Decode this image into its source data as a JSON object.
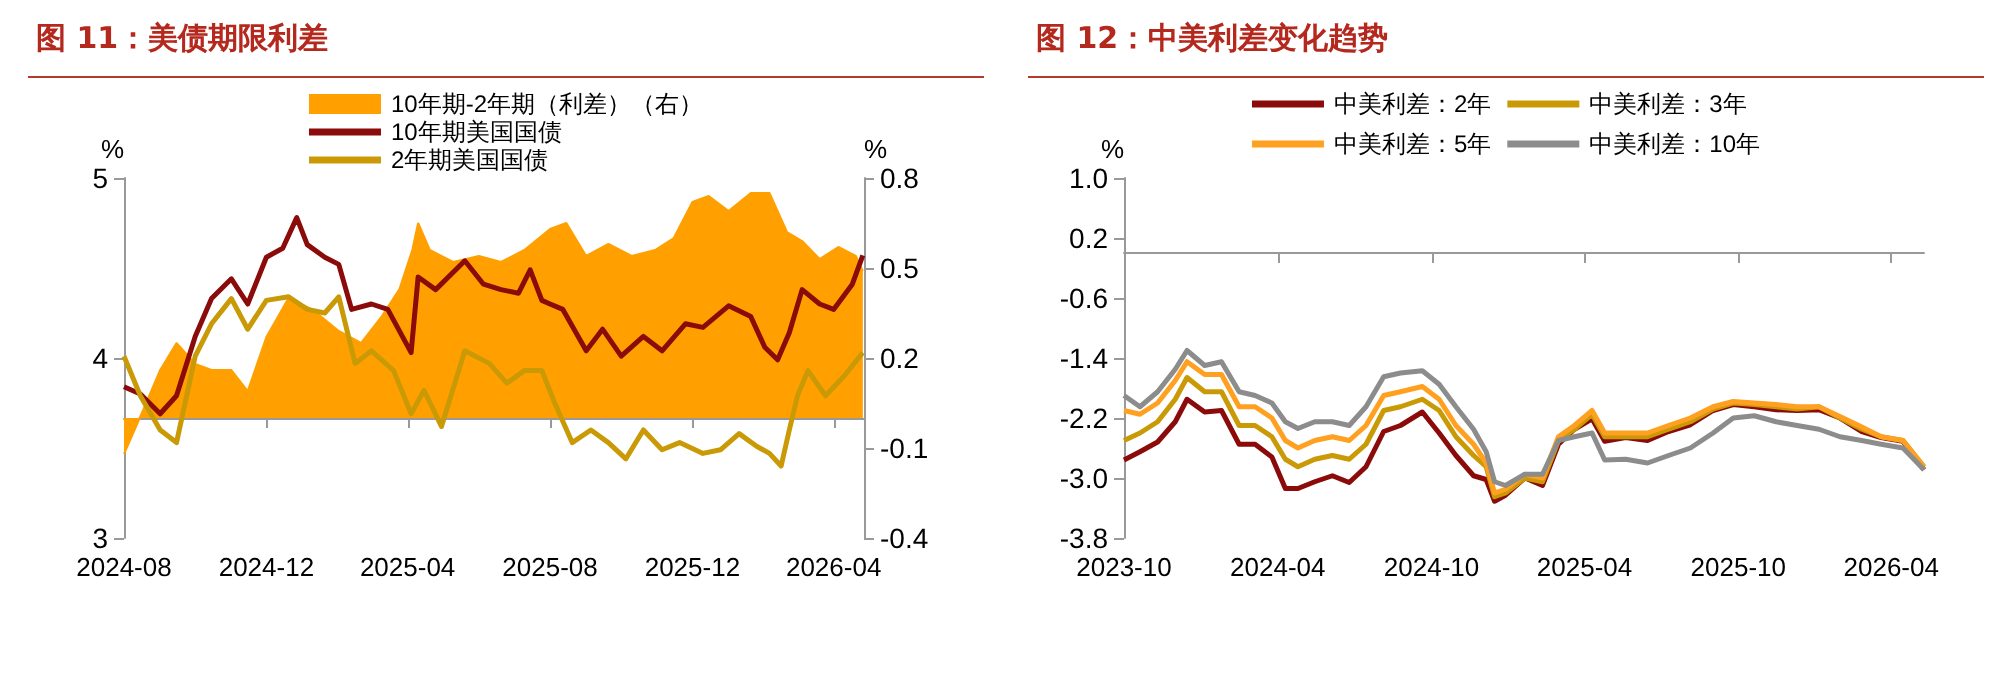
{
  "chart_data": [
    {
      "type": "line",
      "title": "图 11：美债期限利差",
      "ylabel": "%",
      "y2label": "%",
      "legend": "top",
      "marker": "none",
      "grid": false,
      "xlim": [
        "2024-08-01",
        "2026-04-27"
      ],
      "xticks": [
        "2024-08",
        "2024-12",
        "2025-04",
        "2025-08",
        "2025-12",
        "2026-04"
      ],
      "ylim": [
        3,
        5
      ],
      "yticks": [
        3,
        4,
        5
      ],
      "y2lim": [
        -0.4,
        0.8
      ],
      "y2ticks": [
        -0.4,
        -0.1,
        0.2,
        0.5,
        0.8
      ],
      "series": [
        {
          "name": "10年期-2年期（利差）（右）",
          "type": "area",
          "axis": "y2",
          "color": "#ffa000",
          "x": [
            "2024-08-01",
            "2024-08-10",
            "2024-08-20",
            "2024-09-01",
            "2024-09-15",
            "2024-10-01",
            "2024-10-15",
            "2024-11-01",
            "2024-11-15",
            "2024-12-01",
            "2024-12-20",
            "2025-01-10",
            "2025-02-01",
            "2025-02-20",
            "2025-03-10",
            "2025-03-25",
            "2025-04-05",
            "2025-04-10",
            "2025-04-20",
            "2025-05-10",
            "2025-06-01",
            "2025-06-20",
            "2025-07-10",
            "2025-08-01",
            "2025-08-15",
            "2025-09-01",
            "2025-09-20",
            "2025-10-10",
            "2025-10-30",
            "2025-11-15",
            "2025-12-01",
            "2025-12-15",
            "2026-01-01",
            "2026-01-20",
            "2026-02-05",
            "2026-02-20",
            "2026-03-05",
            "2026-03-20",
            "2026-04-05",
            "2026-04-20",
            "2026-04-26"
          ],
          "values": [
            -0.12,
            -0.04,
            0.05,
            0.16,
            0.25,
            0.18,
            0.16,
            0.16,
            0.09,
            0.27,
            0.4,
            0.36,
            0.29,
            0.25,
            0.34,
            0.43,
            0.56,
            0.65,
            0.56,
            0.52,
            0.54,
            0.52,
            0.56,
            0.63,
            0.65,
            0.54,
            0.58,
            0.54,
            0.56,
            0.6,
            0.72,
            0.74,
            0.69,
            0.75,
            0.75,
            0.62,
            0.59,
            0.53,
            0.57,
            0.54,
            0.49
          ]
        },
        {
          "name": "10年期美国国债",
          "type": "line",
          "color": "#8b0a0a",
          "x": [
            "2024-08-01",
            "2024-08-15",
            "2024-09-01",
            "2024-09-15",
            "2024-10-01",
            "2024-10-15",
            "2024-11-01",
            "2024-11-15",
            "2024-12-01",
            "2024-12-15",
            "2024-12-27",
            "2025-01-05",
            "2025-01-20",
            "2025-02-01",
            "2025-02-12",
            "2025-03-01",
            "2025-03-15",
            "2025-04-04",
            "2025-04-10",
            "2025-04-25",
            "2025-05-20",
            "2025-06-05",
            "2025-06-20",
            "2025-07-05",
            "2025-07-15",
            "2025-07-25",
            "2025-08-01",
            "2025-08-12",
            "2025-09-01",
            "2025-09-15",
            "2025-10-01",
            "2025-10-20",
            "2025-11-05",
            "2025-11-25",
            "2025-12-10",
            "2026-01-01",
            "2026-01-20",
            "2026-02-01",
            "2026-02-12",
            "2026-02-22",
            "2026-03-05",
            "2026-03-20",
            "2026-04-01",
            "2026-04-17",
            "2026-04-26"
          ],
          "values": [
            3.84,
            3.8,
            3.69,
            3.79,
            4.12,
            4.33,
            4.44,
            4.3,
            4.56,
            4.61,
            4.78,
            4.63,
            4.56,
            4.52,
            4.27,
            4.3,
            4.27,
            4.03,
            4.45,
            4.38,
            4.54,
            4.41,
            4.38,
            4.36,
            4.49,
            4.32,
            4.3,
            4.27,
            4.04,
            4.16,
            4.01,
            4.12,
            4.04,
            4.19,
            4.17,
            4.29,
            4.23,
            4.06,
            3.99,
            4.14,
            4.38,
            4.3,
            4.27,
            4.41,
            4.57
          ]
        },
        {
          "name": "2年期美国国债",
          "type": "line",
          "color": "#c99a06",
          "x": [
            "2024-08-01",
            "2024-08-15",
            "2024-09-01",
            "2024-09-15",
            "2024-10-01",
            "2024-10-15",
            "2024-11-01",
            "2024-11-15",
            "2024-12-01",
            "2024-12-20",
            "2025-01-05",
            "2025-01-20",
            "2025-02-01",
            "2025-02-15",
            "2025-03-01",
            "2025-03-20",
            "2025-04-04",
            "2025-04-15",
            "2025-04-30",
            "2025-05-20",
            "2025-06-10",
            "2025-06-25",
            "2025-07-10",
            "2025-07-25",
            "2025-08-05",
            "2025-08-20",
            "2025-09-05",
            "2025-09-20",
            "2025-10-05",
            "2025-10-20",
            "2025-11-05",
            "2025-11-20",
            "2025-12-10",
            "2025-12-25",
            "2026-01-10",
            "2026-01-25",
            "2026-02-05",
            "2026-02-15",
            "2026-02-22",
            "2026-03-01",
            "2026-03-10",
            "2026-03-25",
            "2026-04-10",
            "2026-04-26"
          ],
          "values": [
            4.01,
            3.79,
            3.6,
            3.53,
            4.01,
            4.19,
            4.33,
            4.16,
            4.32,
            4.34,
            4.27,
            4.25,
            4.34,
            3.97,
            4.04,
            3.93,
            3.69,
            3.82,
            3.62,
            4.04,
            3.97,
            3.86,
            3.93,
            3.93,
            3.75,
            3.53,
            3.6,
            3.53,
            3.44,
            3.6,
            3.49,
            3.53,
            3.47,
            3.49,
            3.58,
            3.51,
            3.47,
            3.4,
            3.6,
            3.79,
            3.93,
            3.79,
            3.9,
            4.03
          ]
        }
      ]
    },
    {
      "type": "line",
      "title": "图 12：中美利差变化趋势",
      "ylabel": "%",
      "legend": "top",
      "marker": "none",
      "grid": false,
      "xlim": [
        "2023-10-01",
        "2026-05-10"
      ],
      "xticks": [
        "2023-10",
        "2024-04",
        "2024-10",
        "2025-04",
        "2025-10",
        "2026-04"
      ],
      "ylim": [
        -3.8,
        1.0
      ],
      "yticks": [
        -3.8,
        {
          "value": -3.0,
          "label": "-3.0"
        },
        -2.2,
        -1.4,
        -0.6,
        0.2,
        {
          "value": 1.0,
          "label": "1.0"
        }
      ],
      "x": [
        "2023-10-01",
        "2023-10-20",
        "2023-11-10",
        "2023-12-01",
        "2023-12-15",
        "2024-01-05",
        "2024-01-25",
        "2024-02-15",
        "2024-03-05",
        "2024-03-25",
        "2024-04-10",
        "2024-04-25",
        "2024-05-15",
        "2024-06-05",
        "2024-06-25",
        "2024-07-15",
        "2024-08-05",
        "2024-08-25",
        "2024-09-20",
        "2024-10-10",
        "2024-10-30",
        "2024-11-20",
        "2024-12-05",
        "2024-12-15",
        "2024-12-28",
        "2025-01-20",
        "2025-02-10",
        "2025-03-01",
        "2025-03-20",
        "2025-04-10",
        "2025-04-25",
        "2025-05-20",
        "2025-06-15",
        "2025-07-10",
        "2025-08-05",
        "2025-09-01",
        "2025-09-25",
        "2025-10-20",
        "2025-11-15",
        "2025-12-10",
        "2026-01-05",
        "2026-01-30",
        "2026-02-25",
        "2026-03-20",
        "2026-04-15",
        "2026-05-10"
      ],
      "series": [
        {
          "name": "中美利差：2年",
          "color": "#8b0a0a",
          "values": [
            -2.76,
            -2.65,
            -2.52,
            -2.25,
            -1.95,
            -2.12,
            -2.1,
            -2.55,
            -2.55,
            -2.72,
            -3.14,
            -3.14,
            -3.05,
            -2.97,
            -3.06,
            -2.85,
            -2.38,
            -2.3,
            -2.12,
            -2.4,
            -2.7,
            -2.97,
            -3.02,
            -3.31,
            -3.23,
            -3.0,
            -3.1,
            -2.55,
            -2.35,
            -2.21,
            -2.51,
            -2.46,
            -2.5,
            -2.38,
            -2.29,
            -2.1,
            -2.02,
            -2.05,
            -2.09,
            -2.1,
            -2.09,
            -2.2,
            -2.38,
            -2.46,
            -2.51,
            -2.89
          ]
        },
        {
          "name": "中美利差：3年",
          "color": "#c99a06",
          "values": [
            -2.5,
            -2.4,
            -2.25,
            -1.95,
            -1.66,
            -1.85,
            -1.85,
            -2.3,
            -2.3,
            -2.45,
            -2.75,
            -2.85,
            -2.75,
            -2.7,
            -2.75,
            -2.55,
            -2.1,
            -2.05,
            -1.95,
            -2.1,
            -2.45,
            -2.7,
            -2.85,
            -3.25,
            -3.2,
            -3.0,
            -3.05,
            -2.5,
            -2.35,
            -2.15,
            -2.45,
            -2.45,
            -2.45,
            -2.35,
            -2.25,
            -2.08,
            -2.0,
            -2.02,
            -2.05,
            -2.08,
            -2.05,
            -2.2,
            -2.35,
            -2.45,
            -2.5,
            -2.85
          ]
        },
        {
          "name": "中美利差：5年",
          "color": "#ffa020",
          "values": [
            -2.1,
            -2.15,
            -2.0,
            -1.7,
            -1.45,
            -1.62,
            -1.62,
            -2.05,
            -2.05,
            -2.2,
            -2.5,
            -2.6,
            -2.5,
            -2.45,
            -2.5,
            -2.3,
            -1.9,
            -1.85,
            -1.78,
            -1.95,
            -2.3,
            -2.55,
            -2.8,
            -3.2,
            -3.15,
            -2.95,
            -3.0,
            -2.45,
            -2.3,
            -2.1,
            -2.4,
            -2.4,
            -2.4,
            -2.3,
            -2.2,
            -2.05,
            -1.98,
            -2.0,
            -2.02,
            -2.05,
            -2.05,
            -2.18,
            -2.32,
            -2.45,
            -2.5,
            -2.85
          ]
        },
        {
          "name": "中美利差：10年",
          "color": "#8c8c8c",
          "values": [
            -1.9,
            -2.05,
            -1.85,
            -1.55,
            -1.3,
            -1.5,
            -1.45,
            -1.85,
            -1.9,
            -2.0,
            -2.25,
            -2.34,
            -2.25,
            -2.25,
            -2.3,
            -2.05,
            -1.65,
            -1.6,
            -1.57,
            -1.75,
            -2.05,
            -2.35,
            -2.65,
            -3.05,
            -3.1,
            -2.95,
            -2.95,
            -2.5,
            -2.45,
            -2.4,
            -2.76,
            -2.75,
            -2.8,
            -2.7,
            -2.6,
            -2.4,
            -2.2,
            -2.17,
            -2.25,
            -2.3,
            -2.35,
            -2.45,
            -2.5,
            -2.55,
            -2.6,
            -2.89
          ]
        }
      ]
    }
  ]
}
